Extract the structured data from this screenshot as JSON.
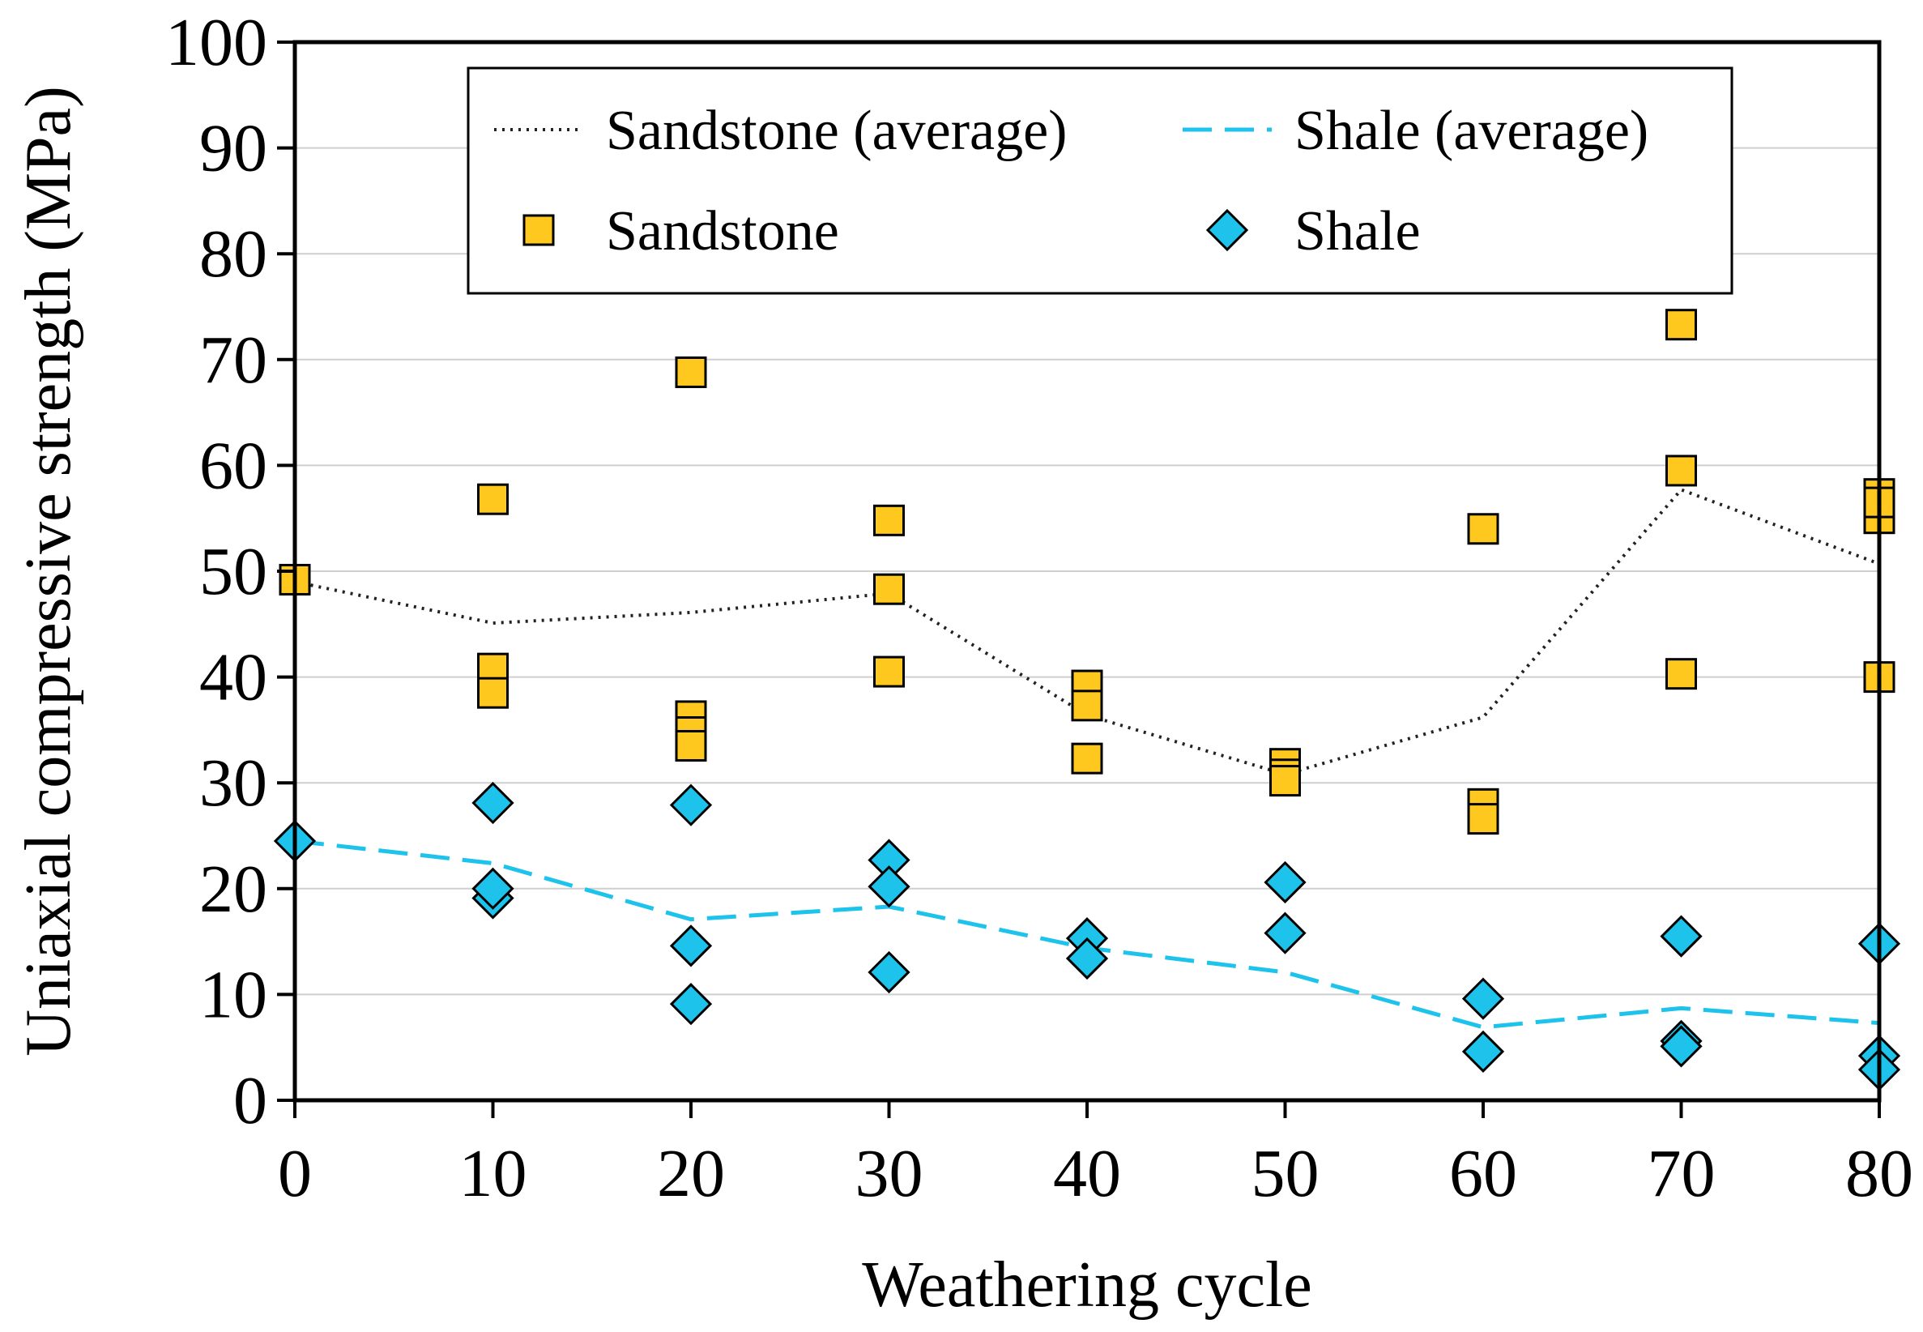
{
  "chart_data": {
    "type": "scatter",
    "title": "",
    "xlabel": "Weathering cycle",
    "ylabel": "Uniaxial compressive strength (MPa)",
    "xlim": [
      0,
      80
    ],
    "ylim": [
      0,
      100
    ],
    "xticks": [
      0,
      10,
      20,
      30,
      40,
      50,
      60,
      70,
      80
    ],
    "yticks": [
      0,
      10,
      20,
      30,
      40,
      50,
      60,
      70,
      80,
      90,
      100
    ],
    "grid": true,
    "legend_position": "top",
    "colors": {
      "sandstone": "#FFC81E",
      "shale": "#1EC3EB",
      "sandstone_avg": "#222222",
      "shale_avg": "#1EC3EB"
    },
    "series": [
      {
        "name": "Sandstone (average)",
        "kind": "line",
        "style": "dotted",
        "x": [
          0,
          10,
          20,
          30,
          40,
          50,
          60,
          70,
          80
        ],
        "y": [
          49.0,
          45.1,
          46.1,
          47.9,
          36.4,
          30.8,
          36.2,
          57.7,
          50.7
        ]
      },
      {
        "name": "Shale (average)",
        "kind": "line",
        "style": "dashed",
        "x": [
          0,
          10,
          20,
          30,
          40,
          50,
          60,
          70,
          80
        ],
        "y": [
          24.5,
          22.4,
          17.1,
          18.3,
          14.4,
          12.1,
          6.9,
          8.7,
          7.3
        ]
      },
      {
        "name": "Sandstone",
        "kind": "scatter",
        "marker": "square",
        "x": [
          0,
          10,
          10,
          10,
          20,
          20,
          20,
          20,
          30,
          30,
          30,
          40,
          40,
          40,
          50,
          50,
          50,
          60,
          60,
          60,
          70,
          70,
          70,
          80,
          80,
          80,
          80
        ],
        "y": [
          49.2,
          56.8,
          40.8,
          38.5,
          68.8,
          36.3,
          34.8,
          33.5,
          54.8,
          48.3,
          40.5,
          39.2,
          37.3,
          32.3,
          31.8,
          30.8,
          30.2,
          54.0,
          28.0,
          26.6,
          73.3,
          59.5,
          40.3,
          57.3,
          55.0,
          40.0,
          56.5
        ]
      },
      {
        "name": "Shale",
        "kind": "scatter",
        "marker": "diamond",
        "x": [
          0,
          10,
          10,
          10,
          20,
          20,
          20,
          30,
          30,
          30,
          40,
          40,
          50,
          50,
          60,
          60,
          70,
          70,
          70,
          80,
          80,
          80
        ],
        "y": [
          24.5,
          28.1,
          19.1,
          20.0,
          27.9,
          14.6,
          9.1,
          22.7,
          20.2,
          12.1,
          15.3,
          13.4,
          20.6,
          15.8,
          9.6,
          4.6,
          15.5,
          5.6,
          5.1,
          14.8,
          4.2,
          2.9
        ]
      }
    ]
  }
}
